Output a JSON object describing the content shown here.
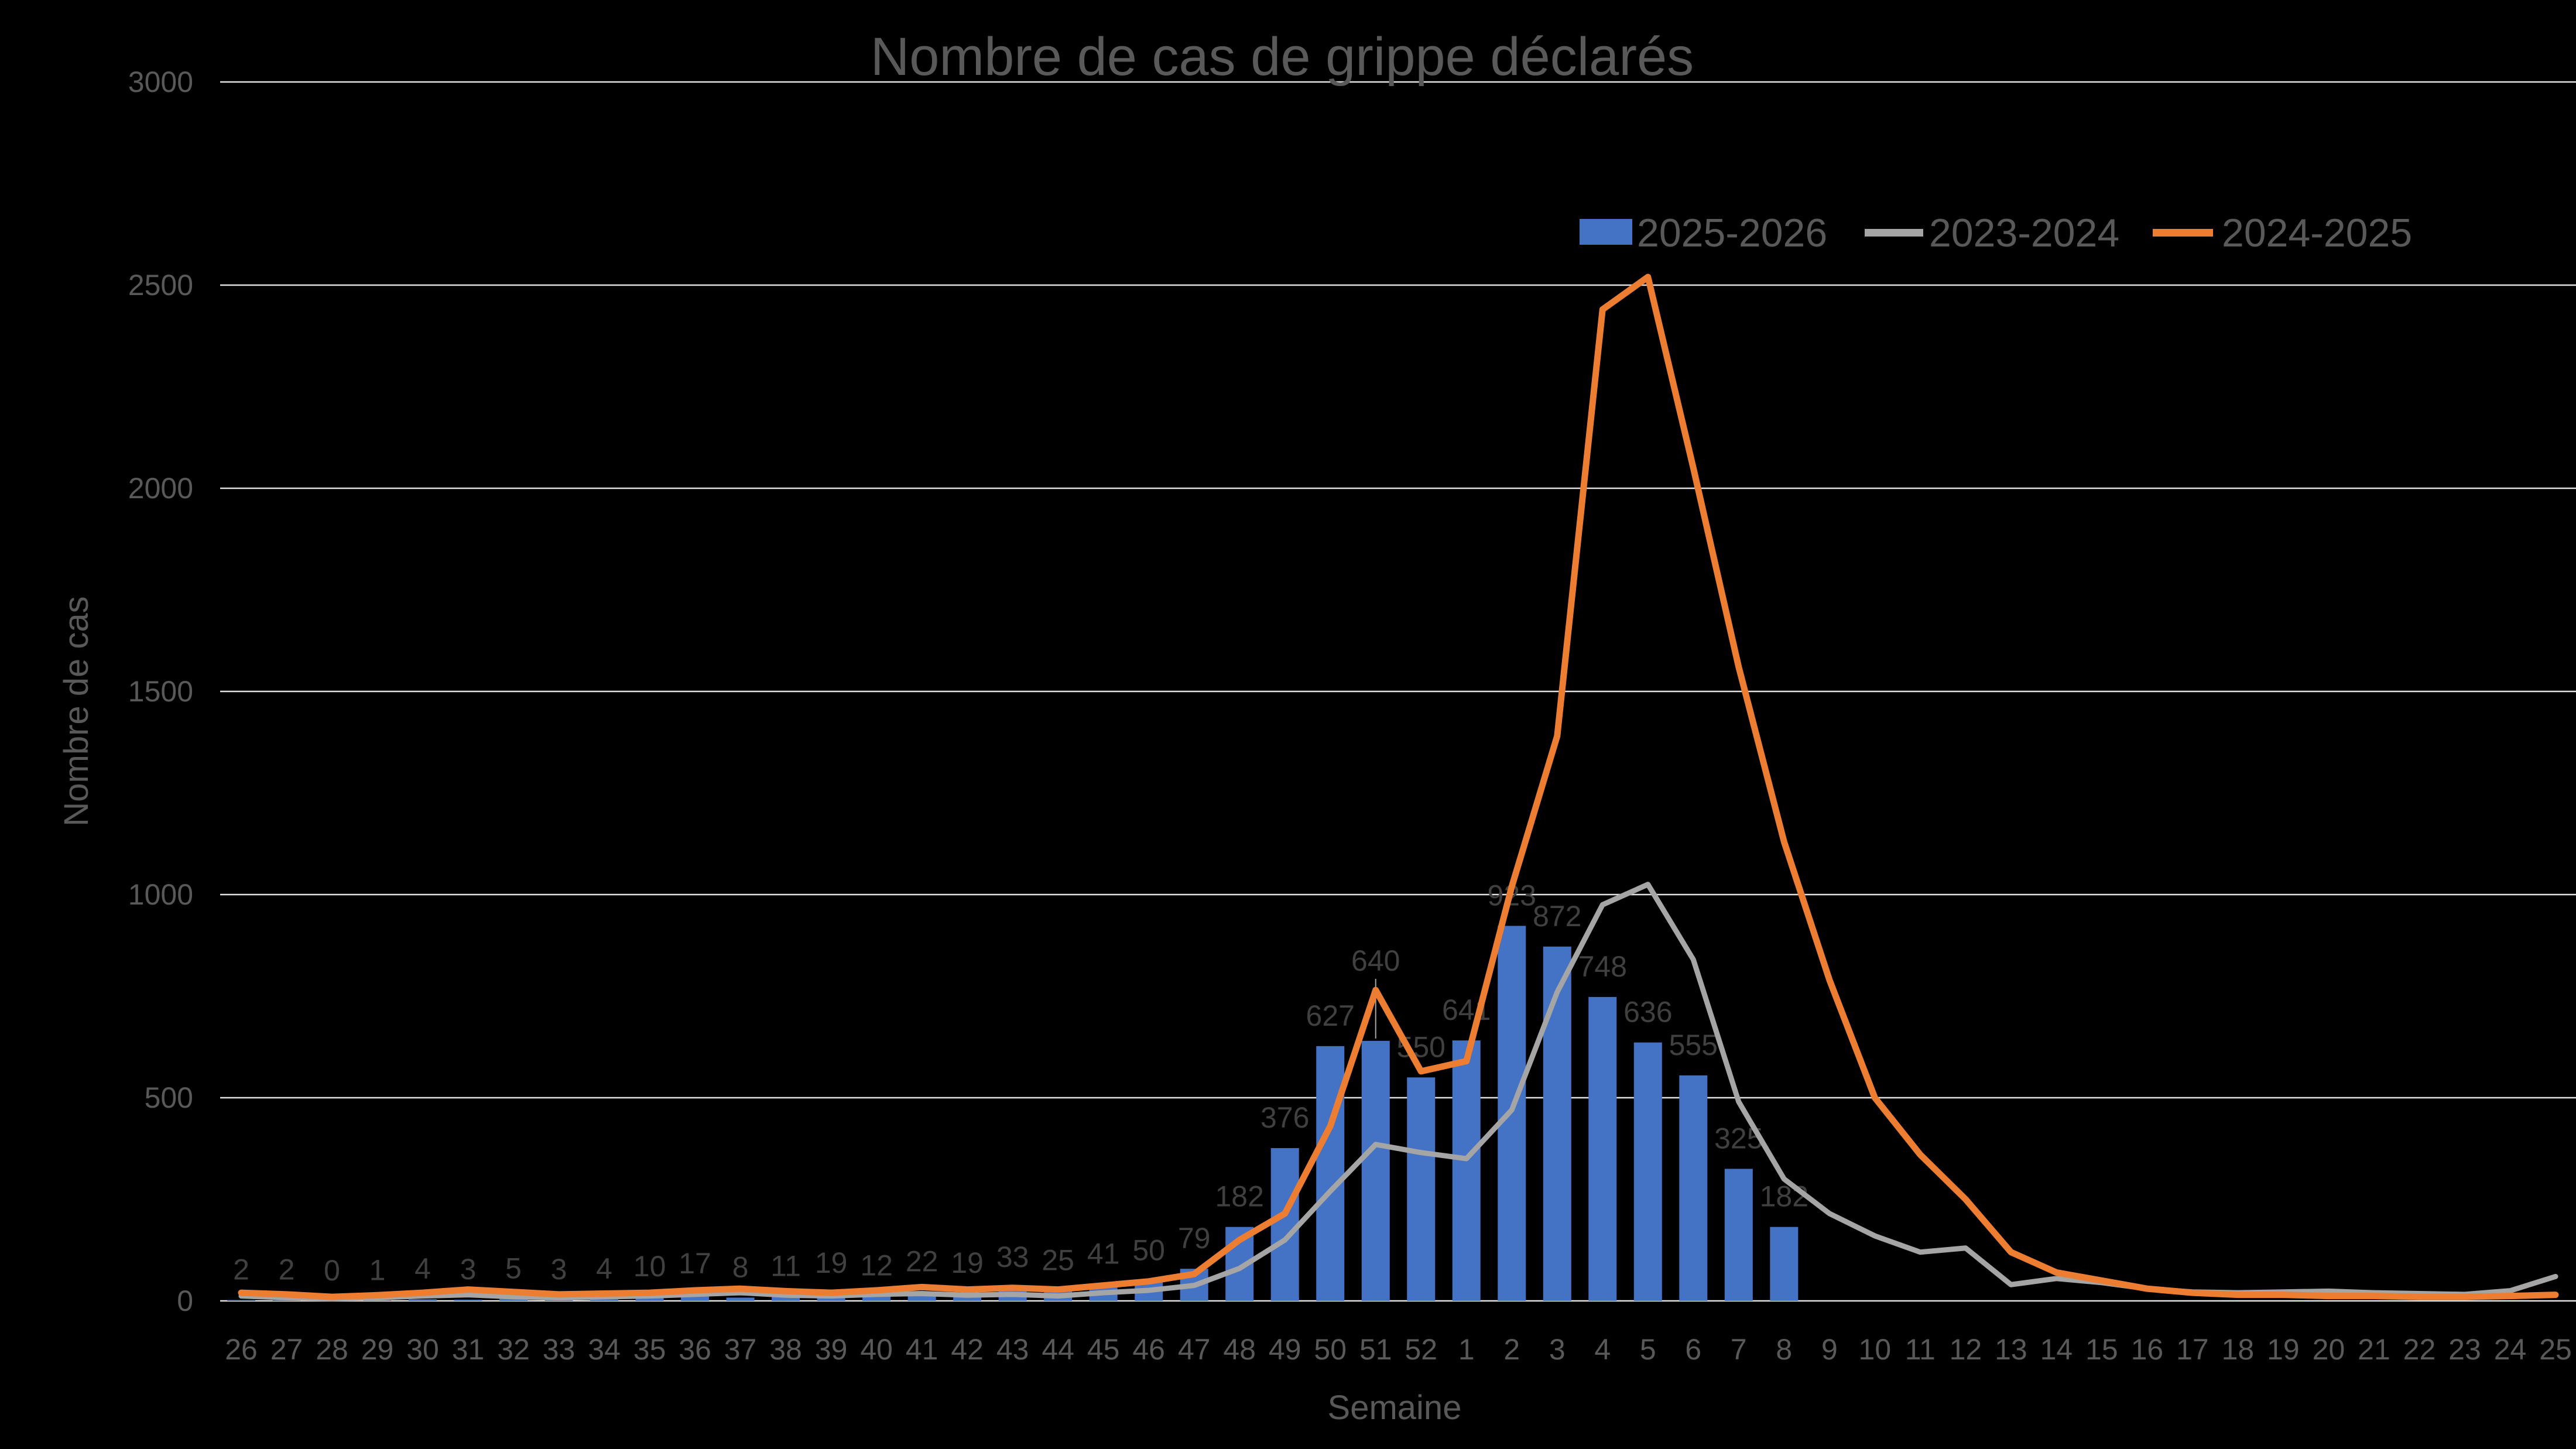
{
  "title": "Nombre de cas de grippe déclarés",
  "x_axis_title": "Semaine",
  "y_axis_title": "Nombre de cas",
  "colors": {
    "background": "#000000",
    "bar": "#4472C4",
    "line_2023_2024": "#A5A5A5",
    "line_2024_2025": "#ED7D31",
    "grid": "#E2E2E2",
    "axis_text": "#595959",
    "data_label": "#404040",
    "leader_line": "#A6A6A6"
  },
  "legend": {
    "position": "top-right",
    "items": [
      {
        "label": "2025-2026",
        "swatch": "bar",
        "color": "#4472C4"
      },
      {
        "label": "2023-2024",
        "swatch": "line",
        "color": "#A5A5A5"
      },
      {
        "label": "2024-2025",
        "swatch": "line",
        "color": "#ED7D31"
      }
    ]
  },
  "chart_data": {
    "type": "bar",
    "combo": "bar + 2 lines",
    "title": "Nombre de cas de grippe déclarés",
    "xlabel": "Semaine",
    "ylabel": "Nombre de cas",
    "ylim": [
      0,
      3000
    ],
    "yticks": [
      0,
      500,
      1000,
      1500,
      2000,
      2500,
      3000
    ],
    "grid": true,
    "legend_position": "top-right",
    "categories": [
      "26",
      "27",
      "28",
      "29",
      "30",
      "31",
      "32",
      "33",
      "34",
      "35",
      "36",
      "37",
      "38",
      "39",
      "40",
      "41",
      "42",
      "43",
      "44",
      "45",
      "46",
      "47",
      "48",
      "49",
      "50",
      "51",
      "52",
      "1",
      "2",
      "3",
      "4",
      "5",
      "6",
      "7",
      "8",
      "9",
      "10",
      "11",
      "12",
      "13",
      "14",
      "15",
      "16",
      "17",
      "18",
      "19",
      "20",
      "21",
      "22",
      "23",
      "24",
      "25"
    ],
    "series": [
      {
        "name": "2025-2026",
        "type": "bar",
        "color": "#4472C4",
        "data_labels": true,
        "callout_category": "51",
        "values": [
          2,
          2,
          0,
          1,
          4,
          3,
          5,
          3,
          4,
          10,
          17,
          8,
          11,
          19,
          12,
          22,
          19,
          33,
          25,
          41,
          50,
          79,
          182,
          376,
          627,
          640,
          550,
          641,
          923,
          872,
          748,
          636,
          555,
          325,
          182,
          null,
          null,
          null,
          null,
          null,
          null,
          null,
          null,
          null,
          null,
          null,
          null,
          null,
          null,
          null,
          null,
          null
        ]
      },
      {
        "name": "2023-2024",
        "type": "line",
        "color": "#A5A5A5",
        "data_labels": false,
        "values": [
          12,
          8,
          5,
          8,
          12,
          15,
          10,
          8,
          10,
          12,
          16,
          20,
          14,
          12,
          16,
          18,
          14,
          16,
          12,
          20,
          26,
          38,
          80,
          150,
          270,
          385,
          365,
          350,
          470,
          760,
          975,
          1025,
          840,
          490,
          300,
          215,
          160,
          120,
          130,
          40,
          55,
          45,
          30,
          22,
          20,
          22,
          24,
          20,
          18,
          16,
          25,
          60
        ]
      },
      {
        "name": "2024-2025",
        "type": "line",
        "color": "#ED7D31",
        "data_labels": false,
        "values": [
          20,
          16,
          10,
          14,
          20,
          28,
          22,
          16,
          18,
          20,
          26,
          30,
          24,
          20,
          26,
          34,
          28,
          32,
          28,
          38,
          48,
          66,
          150,
          215,
          430,
          765,
          565,
          590,
          1020,
          1390,
          2440,
          2520,
          2050,
          1560,
          1130,
          790,
          500,
          360,
          250,
          120,
          70,
          50,
          30,
          20,
          15,
          15,
          12,
          12,
          10,
          10,
          12,
          15
        ]
      }
    ]
  }
}
